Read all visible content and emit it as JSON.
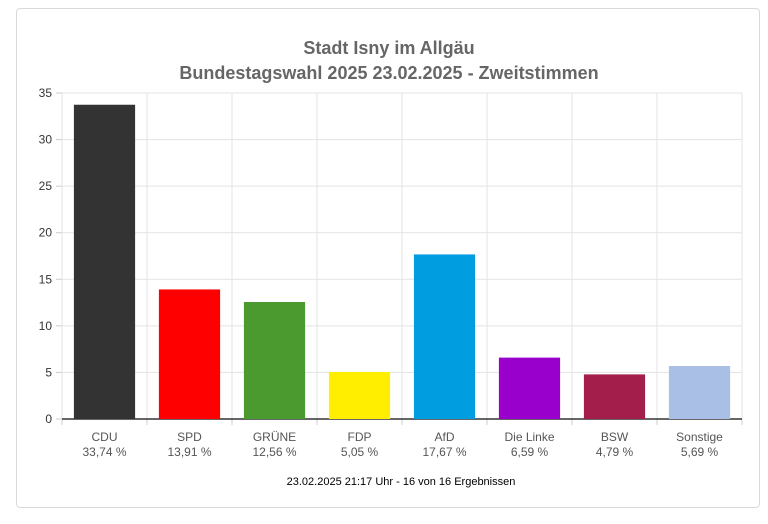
{
  "chart_data": {
    "type": "bar",
    "title": "Stadt Isny im Allgäu",
    "subtitle": "Bundestagswahl 2025 23.02.2025  - Zweitstimmen",
    "categories": [
      "CDU",
      "SPD",
      "GRÜNE",
      "FDP",
      "AfD",
      "Die Linke",
      "BSW",
      "Sonstige"
    ],
    "value_labels": [
      "33,74 %",
      "13,91 %",
      "12,56 %",
      "5,05 %",
      "17,67 %",
      "6,59 %",
      "4,79 %",
      "5,69 %"
    ],
    "values": [
      33.74,
      13.91,
      12.56,
      5.05,
      17.67,
      6.59,
      4.79,
      5.69
    ],
    "colors": [
      "#333333",
      "#ff0000",
      "#4b9a2f",
      "#ffee00",
      "#009ee0",
      "#9900cc",
      "#a31e4b",
      "#aabfe6"
    ],
    "ylim": [
      0,
      35
    ],
    "yticks": [
      0,
      5,
      10,
      15,
      20,
      25,
      30,
      35
    ],
    "grid": true,
    "xlabel": "",
    "ylabel": "",
    "footer": "23.02.2025 21:17 Uhr - 16 von 16 Ergebnissen"
  }
}
